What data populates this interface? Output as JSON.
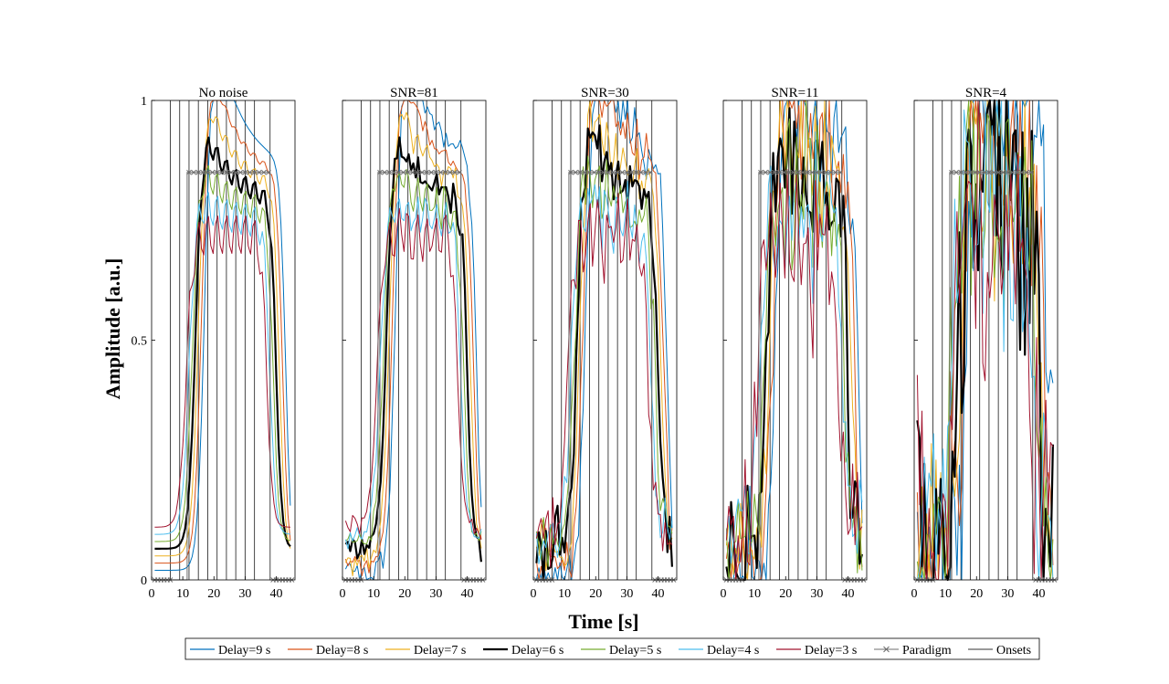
{
  "chart_data": {
    "type": "line",
    "xlabel": "Time [s]",
    "ylabel": "Amplitude [a.u.]",
    "xlim": [
      0,
      46
    ],
    "ylim": [
      0,
      1
    ],
    "xticks": [
      0,
      10,
      20,
      30,
      40
    ],
    "yticks": [
      0,
      0.5,
      1
    ],
    "ytick_labels": [
      "0",
      "0.5",
      "1"
    ],
    "paradigm_block": [
      12,
      38
    ],
    "paradigm_level": 0.85,
    "onset_times": [
      6,
      9,
      12,
      15,
      18,
      21,
      24,
      27,
      30,
      33,
      38
    ],
    "panels": [
      {
        "title": "No noise",
        "noise": 0.0,
        "seed": 11
      },
      {
        "title": "SNR=81",
        "noise": 0.012,
        "seed": 23
      },
      {
        "title": "SNR=30",
        "noise": 0.035,
        "seed": 37
      },
      {
        "title": "SNR=11",
        "noise": 0.075,
        "seed": 53
      },
      {
        "title": "SNR=4",
        "noise": 0.15,
        "seed": 71
      }
    ],
    "series": [
      {
        "name": "Delay=9 s",
        "delay": 9,
        "color": "#0072BD"
      },
      {
        "name": "Delay=8 s",
        "delay": 8,
        "color": "#D95319"
      },
      {
        "name": "Delay=7 s",
        "delay": 7,
        "color": "#EDB120"
      },
      {
        "name": "Delay=6 s",
        "delay": 6,
        "color": "#000000"
      },
      {
        "name": "Delay=5 s",
        "delay": 5,
        "color": "#77AC30"
      },
      {
        "name": "Delay=4 s",
        "delay": 4,
        "color": "#4DBEEE"
      },
      {
        "name": "Delay=3 s",
        "delay": 3,
        "color": "#A2142F"
      }
    ],
    "legend": {
      "placement": "bottom-center",
      "entries": [
        "Delay=9 s",
        "Delay=8 s",
        "Delay=7 s",
        "Delay=6 s",
        "Delay=5 s",
        "Delay=4 s",
        "Delay=3 s",
        "Paradigm",
        "Onsets"
      ]
    }
  }
}
